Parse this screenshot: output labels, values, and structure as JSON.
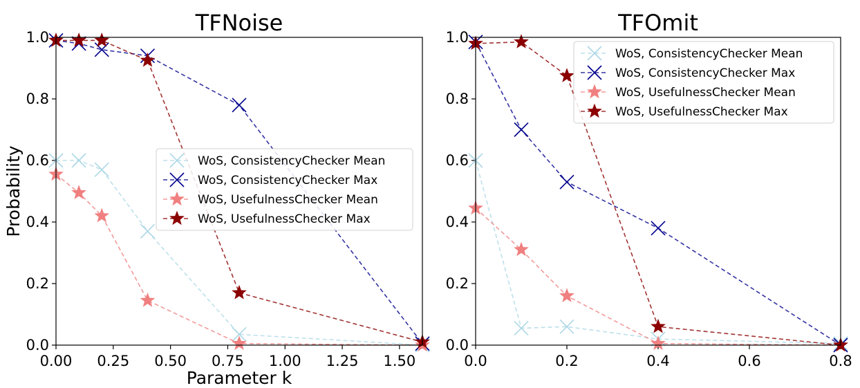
{
  "chart_data": [
    {
      "type": "line",
      "title": "TFNoise",
      "xlabel": "Parameter k",
      "ylabel": "Probability",
      "xlim": [
        0.0,
        1.6
      ],
      "ylim": [
        0.0,
        1.0
      ],
      "xticks": [
        "0.00",
        "0.25",
        "0.50",
        "0.75",
        "1.00",
        "1.25",
        "1.50"
      ],
      "yticks": [
        "0.0",
        "0.2",
        "0.4",
        "0.6",
        "0.8",
        "1.0"
      ],
      "grid": false,
      "legend_position": "center-right",
      "x": [
        0.0,
        0.1,
        0.2,
        0.4,
        0.8,
        1.6
      ],
      "series": [
        {
          "name": "WoS, ConsistencyChecker Mean",
          "values": [
            0.6,
            0.6,
            0.57,
            0.37,
            0.035,
            0.0
          ],
          "color": "#add8e6",
          "marker": "x"
        },
        {
          "name": "WoS, ConsistencyChecker Max",
          "values": [
            0.99,
            0.98,
            0.96,
            0.94,
            0.78,
            0.005
          ],
          "color": "#00008b",
          "marker": "x"
        },
        {
          "name": "WoS, UsefulnessChecker Mean",
          "values": [
            0.555,
            0.495,
            0.42,
            0.145,
            0.005,
            0.0
          ],
          "color": "#f08080",
          "marker": "star"
        },
        {
          "name": "WoS, UsefulnessChecker Max",
          "values": [
            0.99,
            0.99,
            0.99,
            0.925,
            0.17,
            0.01
          ],
          "color": "#8b0000",
          "marker": "star"
        }
      ]
    },
    {
      "type": "line",
      "title": "TFOmit",
      "xlabel": "",
      "ylabel": "",
      "xlim": [
        0.0,
        0.8
      ],
      "ylim": [
        0.0,
        1.0
      ],
      "xticks": [
        "0.0",
        "0.2",
        "0.4",
        "0.6",
        "0.8"
      ],
      "yticks": [
        "0.0",
        "0.2",
        "0.4",
        "0.6",
        "0.8",
        "1.0"
      ],
      "grid": false,
      "legend_position": "top-right",
      "x": [
        0.0,
        0.1,
        0.2,
        0.4,
        0.8
      ],
      "series": [
        {
          "name": "WoS, ConsistencyChecker Mean",
          "values": [
            0.6,
            0.055,
            0.06,
            0.02,
            0.005
          ],
          "color": "#add8e6",
          "marker": "x"
        },
        {
          "name": "WoS, ConsistencyChecker Max",
          "values": [
            0.985,
            0.7,
            0.53,
            0.38,
            0.0
          ],
          "color": "#00008b",
          "marker": "x"
        },
        {
          "name": "WoS, UsefulnessChecker Mean",
          "values": [
            0.445,
            0.31,
            0.16,
            0.005,
            0.0
          ],
          "color": "#f08080",
          "marker": "star"
        },
        {
          "name": "WoS, UsefulnessChecker Max",
          "values": [
            0.98,
            0.985,
            0.875,
            0.06,
            0.0
          ],
          "color": "#8b0000",
          "marker": "star"
        }
      ]
    }
  ]
}
